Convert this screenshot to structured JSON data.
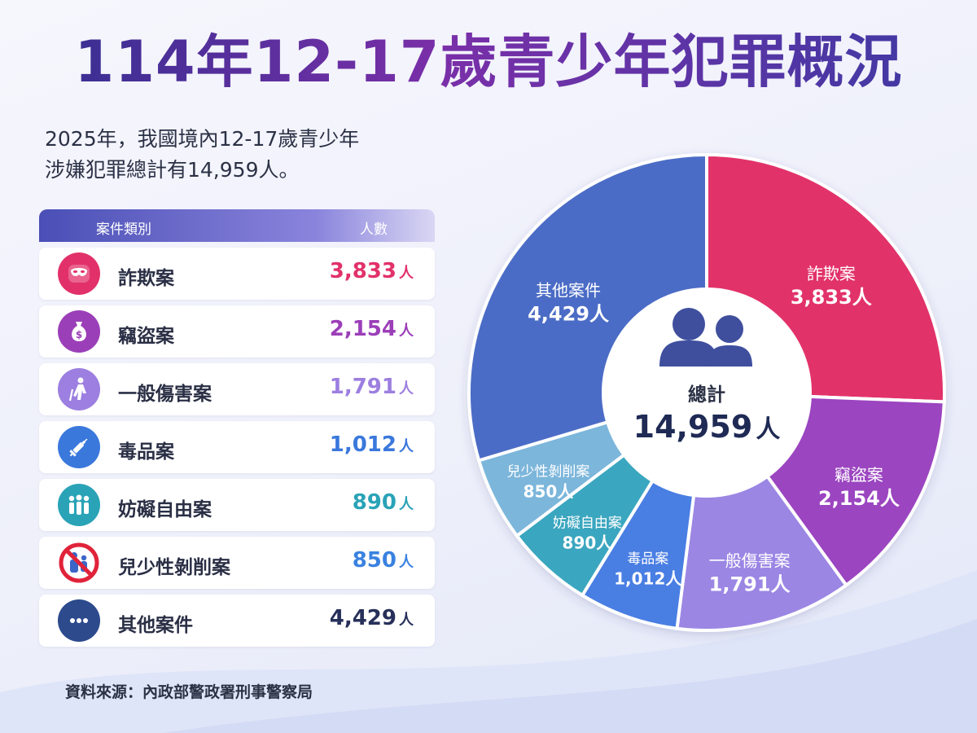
{
  "title": "114年12-17歲青少年犯罪概況",
  "subtitle_line1": "2025年，我國境內12-17歲青少年",
  "subtitle_line2": "涉嫌犯罪總計有14,959人。",
  "table": {
    "header_category": "案件類別",
    "header_count": "人數",
    "rows": [
      {
        "label": "詐欺案",
        "count": "3,833",
        "color": "#e2316a",
        "icon": "mask-icon"
      },
      {
        "label": "竊盜案",
        "count": "2,154",
        "color": "#9b3fb8",
        "icon": "money-bag-icon"
      },
      {
        "label": "一般傷害案",
        "count": "1,791",
        "color": "#9c7fe0",
        "icon": "injured-person-icon"
      },
      {
        "label": "毒品案",
        "count": "1,012",
        "color": "#3a78dc",
        "icon": "syringe-icon"
      },
      {
        "label": "妨礙自由案",
        "count": "890",
        "color": "#2aa3b7",
        "icon": "group-icon"
      },
      {
        "label": "兒少性剝削案",
        "count": "850",
        "color": "#3a82e0",
        "icon": "no-child-exploitation-icon"
      },
      {
        "label": "其他案件",
        "count": "4,429",
        "color": "#27305a",
        "icon": "more-dots-icon"
      }
    ],
    "unit": "人"
  },
  "center": {
    "label": "總計",
    "value": "14,959",
    "unit": "人"
  },
  "source": "資料來源：內政部警政署刑事警察局",
  "chart_data": {
    "type": "pie",
    "categories": [
      "詐欺案",
      "竊盜案",
      "一般傷害案",
      "毒品案",
      "妨礙自由案",
      "兒少性剝削案",
      "其他案件"
    ],
    "values": [
      3833,
      2154,
      1791,
      1012,
      890,
      850,
      4429
    ],
    "value_labels": [
      "3,833",
      "2,154",
      "1,791",
      "1,012",
      "890",
      "850",
      "4,429"
    ],
    "unit": "人",
    "colors": [
      "#e2306b",
      "#9b45c0",
      "#9b86e4",
      "#4a7ee3",
      "#3aa6bf",
      "#7cb6db",
      "#4b6cc6"
    ],
    "total": 14959
  }
}
